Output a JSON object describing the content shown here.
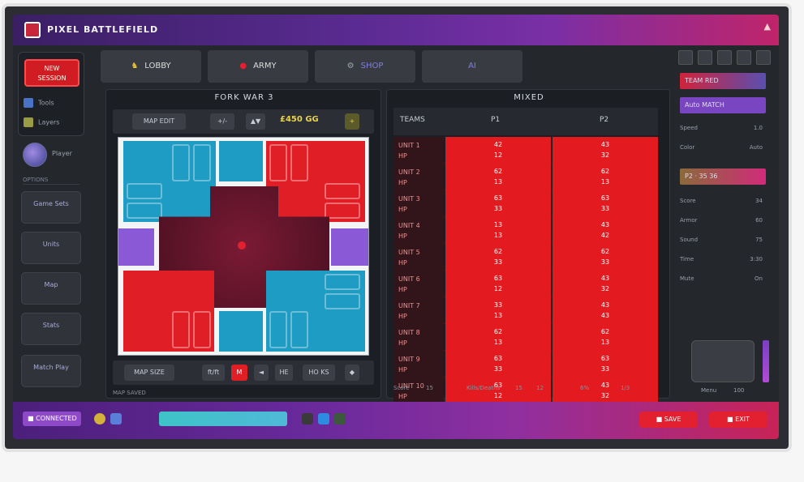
{
  "app": {
    "title": "PIXEL BATTLEFIELD",
    "corner_icon": "alert-icon"
  },
  "sidebar": {
    "top_button": "NEW\nSESSION",
    "rows": [
      "Tools",
      "Layers"
    ],
    "avatar_label": "Player",
    "divider": "OPTIONS",
    "buttons": [
      "Game Sets",
      "Units",
      "Map",
      "Stats",
      "Match Play"
    ]
  },
  "tabs": [
    {
      "label": "LOBBY",
      "icon": "rabbit-icon"
    },
    {
      "label": "ARMY",
      "icon": "fire-icon"
    },
    {
      "label": "SHOP",
      "icon": "gear-icon"
    },
    {
      "label": "AI",
      "icon": ""
    }
  ],
  "map": {
    "title": "FORK WAR 3",
    "toolbar": {
      "mode": "MAP EDIT",
      "b1": "+/-",
      "b2": "▲▼",
      "score": "£450 GG",
      "score_btn": "+"
    },
    "bottom": {
      "label": "MAP SIZE",
      "b1": "ft/ft",
      "b2": "M",
      "b3": "◄",
      "b4": "HE",
      "b5": "HO KS",
      "b6": "◆"
    },
    "foot": "MAP SAVED"
  },
  "grid": {
    "title": "MIXED",
    "head": {
      "col0": "TEAMS",
      "col1": "P1",
      "col2": "P2"
    },
    "rows": [
      {
        "label": "UNIT 1\nHP",
        "v1": "42\n12",
        "v2": "43\n32"
      },
      {
        "label": "UNIT 2\nHP",
        "v1": "62\n13",
        "v2": "62\n13"
      },
      {
        "label": "UNIT 3\nHP",
        "v1": "63\n33",
        "v2": "63\n33"
      },
      {
        "label": "UNIT 4\nHP",
        "v1": "13\n13",
        "v2": "43\n42"
      },
      {
        "label": "UNIT 5\nHP",
        "v1": "62\n33",
        "v2": "62\n33"
      },
      {
        "label": "UNIT 6\nHP",
        "v1": "63\n12",
        "v2": "43\n32"
      },
      {
        "label": "UNIT 7\nHP",
        "v1": "33\n13",
        "v2": "43\n43"
      },
      {
        "label": "UNIT 8\nHP",
        "v1": "62\n13",
        "v2": "62\n13"
      },
      {
        "label": "UNIT 9\nHP",
        "v1": "63\n33",
        "v2": "63\n33"
      },
      {
        "label": "UNIT 10\nHP",
        "v1": "63\n12",
        "v2": "43\n32"
      }
    ],
    "foot": [
      "Score",
      "15",
      "Kills/Deaths",
      "15",
      "12",
      "6%",
      "1/3"
    ]
  },
  "right": {
    "bars": [
      "TEAM RED",
      "Auto MATCH",
      "P2 · 35 36"
    ],
    "rows": [
      {
        "label": "Speed",
        "value": "1.0"
      },
      {
        "label": "Color",
        "value": "Auto"
      },
      {
        "label": "Score",
        "value": "34"
      },
      {
        "label": "Armor",
        "value": "60"
      },
      {
        "label": "Sound",
        "value": "75"
      },
      {
        "label": "Time",
        "value": "3:30"
      },
      {
        "label": "Mute",
        "value": "On"
      }
    ],
    "foot_left": "Menu",
    "foot_right": "100"
  },
  "status": {
    "pill": "■ CONNECTED",
    "progress": 1.0,
    "btn1": "■ SAVE",
    "btn2": "■ EXIT"
  },
  "colors": {
    "accent": "#e31b20",
    "blue": "#1e9cc4",
    "purple": "#8a5ad6"
  }
}
